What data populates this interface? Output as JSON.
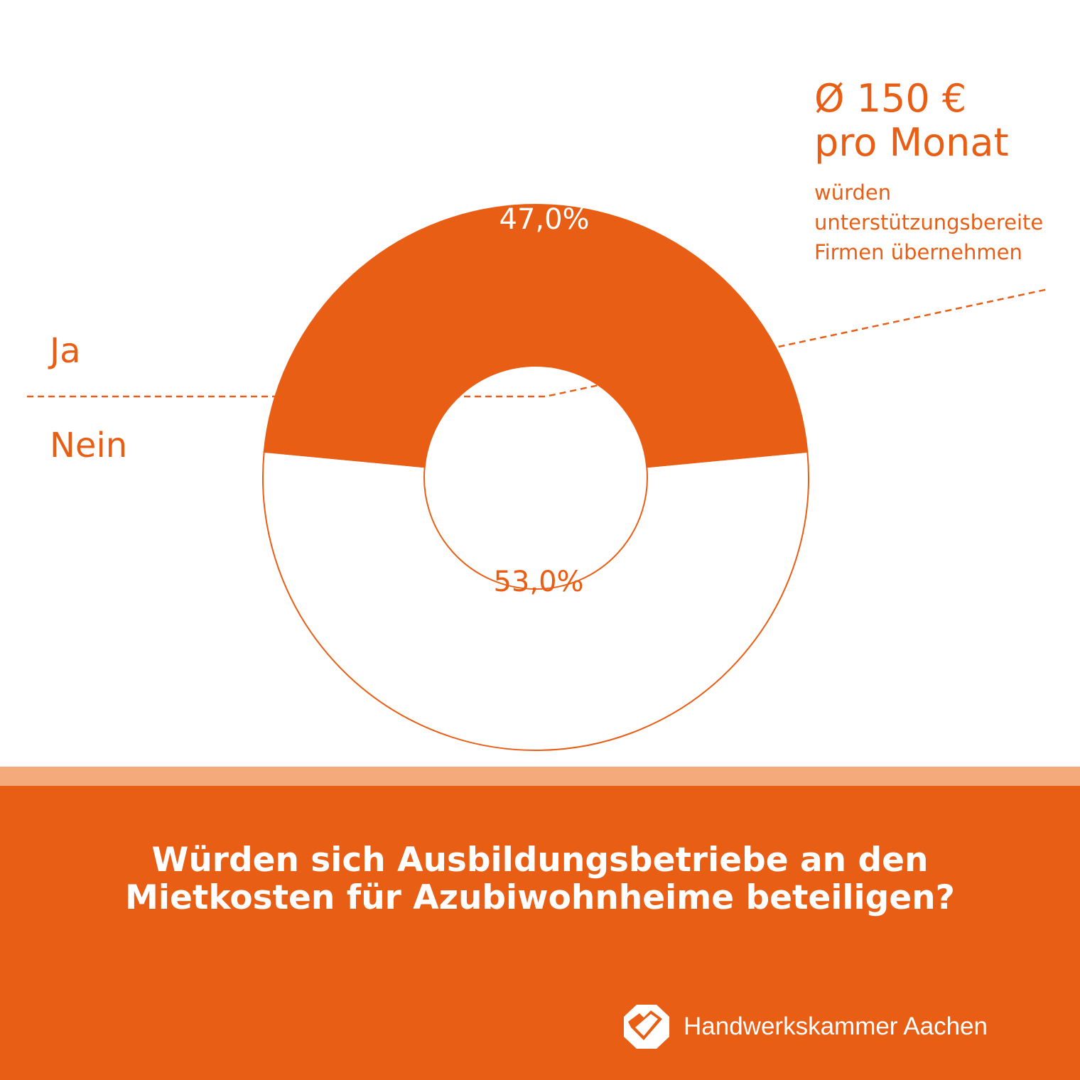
{
  "chart_data": {
    "type": "donut",
    "series": [
      {
        "name": "Ja",
        "value": 47.0,
        "label": "47,0%",
        "fill": "#E95E15"
      },
      {
        "name": "Nein",
        "value": 53.0,
        "label": "53,0%",
        "fill": "#FFFFFF"
      }
    ],
    "legend": {
      "ja": "Ja",
      "nein": "Nein"
    }
  },
  "callout": {
    "headline1": "Ø 150 €",
    "headline2": "pro Monat",
    "text1": "würden",
    "text2": "unterstützungsbereite",
    "text3": "Firmen übernehmen"
  },
  "footer": {
    "question_line1": "Würden sich Ausbildungsbetriebe an den",
    "question_line2": "Mietkosten für Azubiwohnheime beteiligen?",
    "brand_name": "Handwerkskammer Aachen",
    "logo_icon": "hwk-cube-logo-icon"
  },
  "colors": {
    "accent": "#E95E15",
    "accent_light": "#F5AA7B",
    "background": "#FFFFFF"
  }
}
